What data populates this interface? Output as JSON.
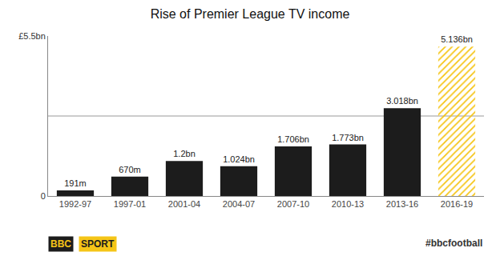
{
  "chart_data": {
    "type": "bar",
    "title": "Rise of Premier League TV income",
    "categories": [
      "1992-97",
      "1997-01",
      "2001-04",
      "2004-07",
      "2007-10",
      "2010-13",
      "2013-16",
      "2016-19"
    ],
    "values": [
      0.191,
      0.67,
      1.2,
      1.024,
      1.706,
      1.773,
      3.018,
      5.136
    ],
    "value_labels": [
      "191m",
      "670m",
      "1.2bn",
      "1.024bn",
      "1.706bn",
      "1.773bn",
      "3.018bn",
      "5.136bn"
    ],
    "data_labels": true,
    "colors": [
      "#1c1c1c",
      "#1c1c1c",
      "#1c1c1c",
      "#1c1c1c",
      "#1c1c1c",
      "#1c1c1c",
      "#1c1c1c",
      "#f5c518"
    ],
    "ylim": [
      0,
      5.5
    ],
    "yticks": [
      {
        "value": 0,
        "label": "0"
      },
      {
        "value": 5.5,
        "label": "£5.5bn"
      }
    ],
    "reference_line": 2.75,
    "grid": false,
    "annotations": [
      "#bbcfootball",
      "BBC",
      "SPORT"
    ]
  }
}
